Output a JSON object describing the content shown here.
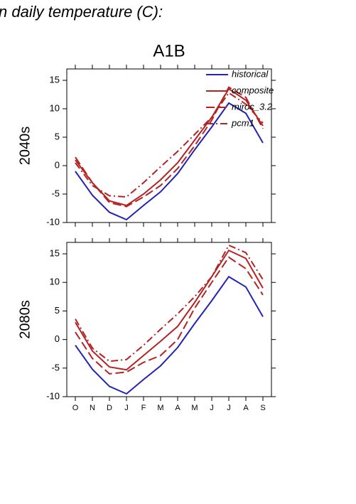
{
  "header": {
    "title": "n daily temperature (C):"
  },
  "chart_data": [
    {
      "type": "line",
      "title": "A1B",
      "ylabel": "2040s",
      "legend": "upper right",
      "ylim": [
        -10,
        17
      ],
      "yticks": [
        -10,
        -5,
        0,
        5,
        10,
        15
      ],
      "series": [
        {
          "name": "historical",
          "color": "#2323b4",
          "dash": "none",
          "values": [
            -1,
            -5.2,
            -8.2,
            -9.5,
            -7,
            -4.6,
            -1.4,
            2.8,
            6.8,
            11,
            9.2,
            4
          ]
        },
        {
          "name": "composite",
          "color": "#b42323",
          "dash": "none",
          "values": [
            1,
            -3,
            -6.2,
            -7,
            -5,
            -2.5,
            0.5,
            4.5,
            8.5,
            13.5,
            11.5,
            7
          ]
        },
        {
          "name": "miroc_3.2",
          "color": "#b42323",
          "dash": "12,5",
          "values": [
            1.5,
            -3,
            -6.5,
            -7.2,
            -5.5,
            -3.5,
            -0.5,
            3.5,
            8,
            13.8,
            12,
            6.5
          ]
        },
        {
          "name": "pcm1",
          "color": "#b42323",
          "dash": "10,4,2,4",
          "values": [
            0.5,
            -3.5,
            -5.3,
            -5.5,
            -3,
            -0.2,
            2.5,
            5.5,
            8.5,
            12.8,
            10.8,
            7.5
          ]
        }
      ]
    },
    {
      "type": "line",
      "ylabel": "2080s",
      "categories": [
        "O",
        "N",
        "D",
        "J",
        "F",
        "M",
        "A",
        "M",
        "J",
        "J",
        "A",
        "S"
      ],
      "ylim": [
        -10,
        17
      ],
      "yticks": [
        -10,
        -5,
        0,
        5,
        10,
        15
      ],
      "series": [
        {
          "name": "historical",
          "color": "#2323b4",
          "dash": "none",
          "values": [
            -1,
            -5.2,
            -8.2,
            -9.5,
            -7,
            -4.6,
            -1.4,
            2.8,
            6.8,
            11,
            9.2,
            4
          ]
        },
        {
          "name": "composite",
          "color": "#b42323",
          "dash": "none",
          "values": [
            3,
            -2,
            -4.8,
            -5.3,
            -2.8,
            -0.3,
            2.3,
            6.5,
            11,
            15.6,
            14.2,
            9
          ]
        },
        {
          "name": "miroc_3.2",
          "color": "#b42323",
          "dash": "12,5",
          "values": [
            1.3,
            -3.3,
            -6,
            -5.7,
            -4,
            -2.8,
            0,
            5.5,
            10,
            14.4,
            12.4,
            7.8
          ]
        },
        {
          "name": "pcm1",
          "color": "#b42323",
          "dash": "10,4,2,4",
          "values": [
            3.6,
            -1.5,
            -3.8,
            -3.5,
            -1,
            1.8,
            4.5,
            7.5,
            11,
            16.5,
            15.2,
            10.5
          ]
        }
      ]
    }
  ]
}
